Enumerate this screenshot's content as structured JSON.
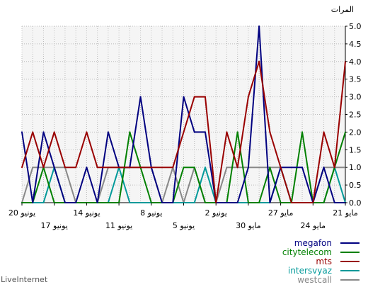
{
  "chart_data": {
    "type": "line",
    "ylabel": "المرات",
    "ylim": [
      0,
      5
    ],
    "yticks": [
      "0.0",
      "0.5",
      "1.0",
      "1.5",
      "2.0",
      "2.5",
      "3.0",
      "3.5",
      "4.0",
      "4.5",
      "5.0"
    ],
    "grid": true,
    "legend_position": "bottom-right",
    "x_tick_labels": [
      "21 مايو",
      "24 مايو",
      "27 مايو",
      "30 مايو",
      "2 يونيو",
      "5 يونيو",
      "8 يونيو",
      "11 يونيو",
      "14 يونيو",
      "17 يونيو",
      "20 يونيو"
    ],
    "series": [
      {
        "name": "megafon",
        "color": "#000080",
        "values": [
          2,
          0,
          2,
          1,
          0,
          0,
          1,
          0,
          2,
          1,
          1,
          3,
          1,
          0,
          0,
          3,
          2,
          2,
          0,
          0,
          0,
          1,
          5,
          0,
          1,
          1,
          1,
          0,
          1,
          0,
          0
        ]
      },
      {
        "name": "citytelecom",
        "color": "#008000",
        "values": [
          0,
          0,
          1,
          0,
          0,
          0,
          0,
          0,
          0,
          0,
          2,
          1,
          0,
          0,
          0,
          1,
          1,
          0,
          0,
          0,
          2,
          0,
          0,
          1,
          0,
          0,
          2,
          0,
          0,
          1,
          2
        ]
      },
      {
        "name": "mts",
        "color": "#990000",
        "values": [
          1,
          2,
          1,
          2,
          1,
          1,
          2,
          1,
          1,
          1,
          1,
          1,
          1,
          1,
          1,
          2,
          3,
          3,
          0,
          2,
          1,
          3,
          4,
          2,
          1,
          0,
          0,
          0,
          2,
          1,
          4
        ]
      },
      {
        "name": "intersvyaz",
        "color": "#009999",
        "values": [
          0,
          0,
          0,
          1,
          0,
          0,
          0,
          0,
          0,
          1,
          0,
          0,
          0,
          0,
          0,
          0,
          0,
          1,
          0,
          0,
          0,
          0,
          0,
          0,
          1,
          0,
          0,
          0,
          0,
          1,
          0
        ]
      },
      {
        "name": "westcall",
        "color": "#888888",
        "values": [
          0,
          1,
          1,
          1,
          1,
          0,
          0,
          0,
          1,
          1,
          1,
          1,
          1,
          0,
          1,
          0,
          1,
          0,
          0,
          1,
          1,
          1,
          1,
          1,
          1,
          0,
          0,
          0,
          1,
          1,
          1
        ]
      }
    ]
  },
  "footer": {
    "brand": "LiveInternet"
  }
}
